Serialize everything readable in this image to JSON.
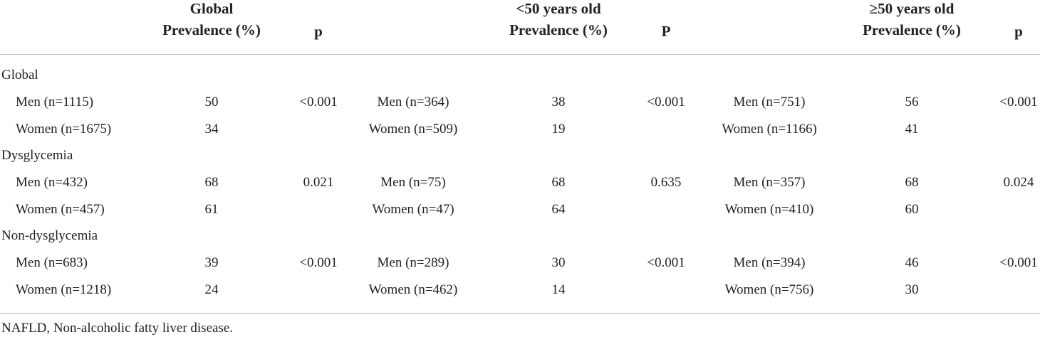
{
  "header": [
    {
      "title": "Global",
      "subtitle": "Prevalence (%)"
    },
    {
      "title": "p"
    },
    {
      "title": "<50 years old",
      "subtitle": "Prevalence (%)"
    },
    {
      "title": "P"
    },
    {
      "title": "≥50 years old",
      "subtitle": "Prevalence (%)"
    },
    {
      "title": "p"
    }
  ],
  "sections": [
    {
      "title": "Global",
      "rows": [
        [
          {
            "label": "Men (n=1115)",
            "prevalence": 50,
            "p": "<0.001"
          },
          {
            "label": "Men (n=364)",
            "prevalence": 38,
            "p": "<0.001"
          },
          {
            "label": "Men (n=751)",
            "prevalence": 56,
            "p": "<0.001"
          }
        ],
        [
          {
            "label": "Women (n=1675)",
            "prevalence": 34
          },
          {
            "label": "Women (n=509)",
            "prevalence": 19
          },
          {
            "label": "Women (n=1166)",
            "prevalence": 41
          }
        ]
      ]
    },
    {
      "title": "Dysglycemia",
      "rows": [
        [
          {
            "label": "Men (n=432)",
            "prevalence": 68,
            "p": "0.021"
          },
          {
            "label": "Men (n=75)",
            "prevalence": 68,
            "p": "0.635"
          },
          {
            "label": "Men (n=357)",
            "prevalence": 68,
            "p": "0.024"
          }
        ],
        [
          {
            "label": "Women (n=457)",
            "prevalence": 61
          },
          {
            "label": "Women (n=47)",
            "prevalence": 64
          },
          {
            "label": "Women (n=410)",
            "prevalence": 60
          }
        ]
      ]
    },
    {
      "title": "Non-dysglycemia",
      "rows": [
        [
          {
            "label": "Men (n=683)",
            "prevalence": 39,
            "p": "<0.001"
          },
          {
            "label": "Men (n=289)",
            "prevalence": 30,
            "p": "<0.001"
          },
          {
            "label": "Men (n=394)",
            "prevalence": 46,
            "p": "<0.001"
          }
        ],
        [
          {
            "label": "Women (n=1218)",
            "prevalence": 24
          },
          {
            "label": "Women (n=462)",
            "prevalence": 14
          },
          {
            "label": "Women (n=756)",
            "prevalence": 30
          }
        ]
      ]
    }
  ],
  "footnote": "NAFLD, Non-alcoholic fatty liver disease."
}
